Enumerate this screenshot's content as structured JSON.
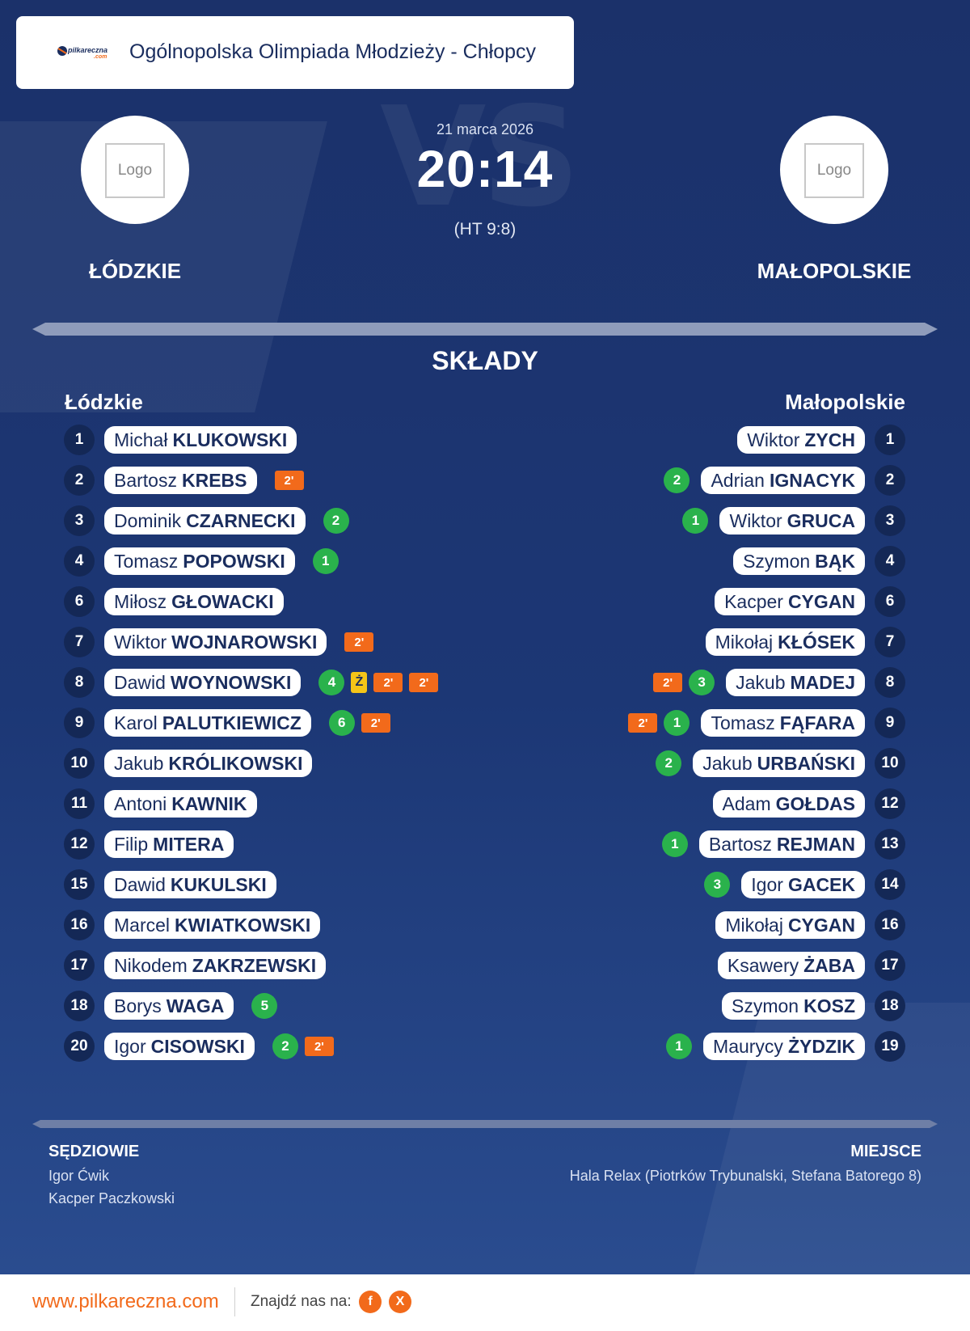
{
  "header": {
    "brand_main": "pilkareczna",
    "brand_sub": ".com",
    "title": "Ogólnopolska Olimpiada Młodzieży - Chłopcy"
  },
  "match": {
    "date": "21 marca 2026",
    "score": "20:14",
    "halftime": "(HT 9:8)",
    "home": {
      "name": "ŁÓDZKIE",
      "logo_text": "Logo"
    },
    "away": {
      "name": "MAŁOPOLSKIE",
      "logo_text": "Logo"
    }
  },
  "lineups": {
    "title": "SKŁADY",
    "home_title": "Łódzkie",
    "away_title": "Małopolskie",
    "home": [
      {
        "number": "1",
        "first": "Michał",
        "last": "KLUKOWSKI",
        "goals": "",
        "yellow": "",
        "suspensions": []
      },
      {
        "number": "2",
        "first": "Bartosz",
        "last": "KREBS",
        "goals": "",
        "yellow": "",
        "suspensions": [
          "2'"
        ]
      },
      {
        "number": "3",
        "first": "Dominik",
        "last": "CZARNECKI",
        "goals": "2",
        "yellow": "",
        "suspensions": []
      },
      {
        "number": "4",
        "first": "Tomasz",
        "last": "POPOWSKI",
        "goals": "1",
        "yellow": "",
        "suspensions": []
      },
      {
        "number": "6",
        "first": "Miłosz",
        "last": "GŁOWACKI",
        "goals": "",
        "yellow": "",
        "suspensions": []
      },
      {
        "number": "7",
        "first": "Wiktor",
        "last": "WOJNAROWSKI",
        "goals": "",
        "yellow": "",
        "suspensions": [
          "2'"
        ]
      },
      {
        "number": "8",
        "first": "Dawid",
        "last": "WOYNOWSKI",
        "goals": "4",
        "yellow": "Ż",
        "suspensions": [
          "2'",
          "2'"
        ]
      },
      {
        "number": "9",
        "first": "Karol",
        "last": "PALUTKIEWICZ",
        "goals": "6",
        "yellow": "",
        "suspensions": [
          "2'"
        ]
      },
      {
        "number": "10",
        "first": "Jakub",
        "last": "KRÓLIKOWSKI",
        "goals": "",
        "yellow": "",
        "suspensions": []
      },
      {
        "number": "11",
        "first": "Antoni",
        "last": "KAWNIK",
        "goals": "",
        "yellow": "",
        "suspensions": []
      },
      {
        "number": "12",
        "first": "Filip",
        "last": "MITERA",
        "goals": "",
        "yellow": "",
        "suspensions": []
      },
      {
        "number": "15",
        "first": "Dawid",
        "last": "KUKULSKI",
        "goals": "",
        "yellow": "",
        "suspensions": []
      },
      {
        "number": "16",
        "first": "Marcel",
        "last": "KWIATKOWSKI",
        "goals": "",
        "yellow": "",
        "suspensions": []
      },
      {
        "number": "17",
        "first": "Nikodem",
        "last": "ZAKRZEWSKI",
        "goals": "",
        "yellow": "",
        "suspensions": []
      },
      {
        "number": "18",
        "first": "Borys",
        "last": "WAGA",
        "goals": "5",
        "yellow": "",
        "suspensions": []
      },
      {
        "number": "20",
        "first": "Igor",
        "last": "CISOWSKI",
        "goals": "2",
        "yellow": "",
        "suspensions": [
          "2'"
        ]
      }
    ],
    "away": [
      {
        "number": "1",
        "first": "Wiktor",
        "last": "ZYCH",
        "goals": "",
        "yellow": "",
        "suspensions": []
      },
      {
        "number": "2",
        "first": "Adrian",
        "last": "IGNACYK",
        "goals": "2",
        "yellow": "",
        "suspensions": []
      },
      {
        "number": "3",
        "first": "Wiktor",
        "last": "GRUCA",
        "goals": "1",
        "yellow": "",
        "suspensions": []
      },
      {
        "number": "4",
        "first": "Szymon",
        "last": "BĄK",
        "goals": "",
        "yellow": "",
        "suspensions": []
      },
      {
        "number": "6",
        "first": "Kacper",
        "last": "CYGAN",
        "goals": "",
        "yellow": "",
        "suspensions": []
      },
      {
        "number": "7",
        "first": "Mikołaj",
        "last": "KŁÓSEK",
        "goals": "",
        "yellow": "",
        "suspensions": []
      },
      {
        "number": "8",
        "first": "Jakub",
        "last": "MADEJ",
        "goals": "3",
        "yellow": "",
        "suspensions": [
          "2'"
        ]
      },
      {
        "number": "9",
        "first": "Tomasz",
        "last": "FĄFARA",
        "goals": "1",
        "yellow": "",
        "suspensions": [
          "2'"
        ]
      },
      {
        "number": "10",
        "first": "Jakub",
        "last": "URBAŃSKI",
        "goals": "2",
        "yellow": "",
        "suspensions": []
      },
      {
        "number": "12",
        "first": "Adam",
        "last": "GOŁDAS",
        "goals": "",
        "yellow": "",
        "suspensions": []
      },
      {
        "number": "13",
        "first": "Bartosz",
        "last": "REJMAN",
        "goals": "1",
        "yellow": "",
        "suspensions": []
      },
      {
        "number": "14",
        "first": "Igor",
        "last": "GACEK",
        "goals": "3",
        "yellow": "",
        "suspensions": []
      },
      {
        "number": "16",
        "first": "Mikołaj",
        "last": "CYGAN",
        "goals": "",
        "yellow": "",
        "suspensions": []
      },
      {
        "number": "17",
        "first": "Ksawery",
        "last": "ŻABA",
        "goals": "",
        "yellow": "",
        "suspensions": []
      },
      {
        "number": "18",
        "first": "Szymon",
        "last": "KOSZ",
        "goals": "",
        "yellow": "",
        "suspensions": []
      },
      {
        "number": "19",
        "first": "Maurycy",
        "last": "ŻYDZIK",
        "goals": "1",
        "yellow": "",
        "suspensions": []
      }
    ]
  },
  "officials": {
    "label": "SĘDZIOWIE",
    "names": [
      "Igor Ćwik",
      "Kacper Paczkowski"
    ]
  },
  "venue": {
    "label": "MIEJSCE",
    "value": "Hala Relax (Piotrków Trybunalski, Stefana Batorego 8)"
  },
  "footer": {
    "site": "www.pilkareczna.com",
    "find_us": "Znajdź nas na:",
    "social": [
      {
        "icon": "facebook-icon",
        "glyph": "f"
      },
      {
        "icon": "x-icon",
        "glyph": "X"
      }
    ]
  },
  "colors": {
    "background": "#1c336a",
    "accent": "#f26a1b",
    "goal": "#2ab24c",
    "yellow_card": "#f5c518"
  }
}
